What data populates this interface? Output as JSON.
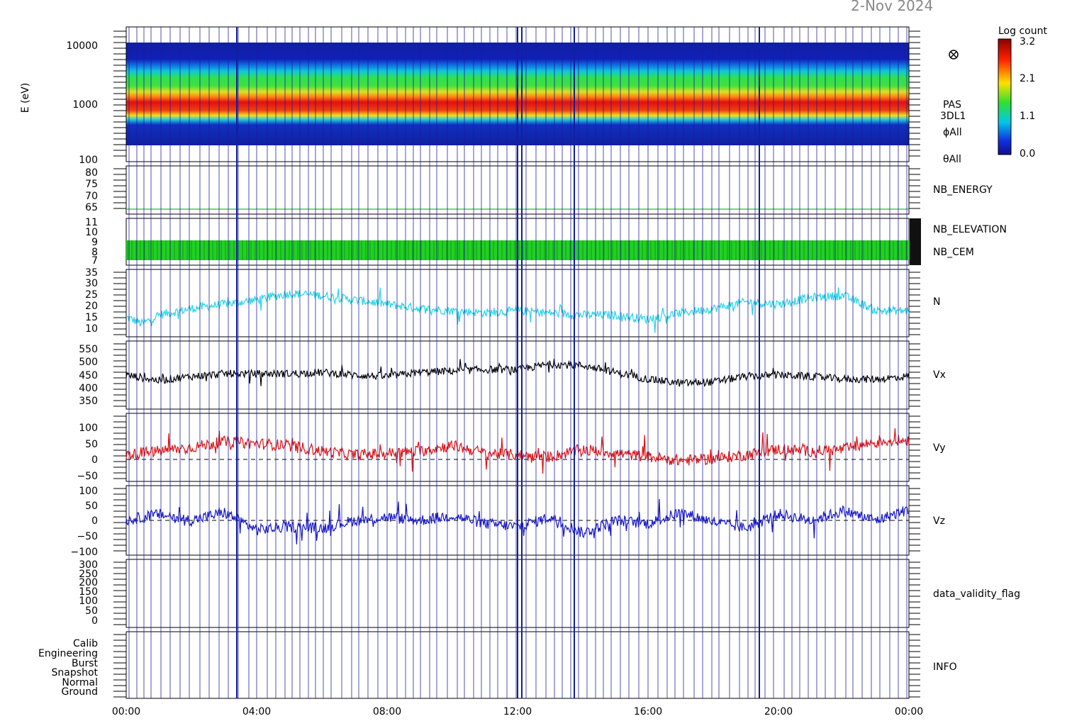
{
  "title": {
    "date_text": "2-Nov 2024"
  },
  "colorbar": {
    "label": "Log count",
    "ticks": [
      "3.2",
      "2.1",
      "1.1",
      "0.0"
    ]
  },
  "spectrogram": {
    "ylabel": "E (eV)",
    "labels": [
      "PAS",
      "3DL1",
      "ϕAll",
      "θAll"
    ]
  },
  "x_ticks": [
    "00:00",
    "04:00",
    "08:00",
    "12:00",
    "16:00",
    "20:00",
    "00:00"
  ],
  "colors": {
    "axis": "#000000",
    "event_lines": "#1a1aa0",
    "nb_energy": "#22c022",
    "nb_elevation": "#22d022",
    "nb_cem": "#2222c0",
    "N": "#22d4e8",
    "Vx": "#000000",
    "Vy": "#e01010",
    "Vz": "#1515c8"
  },
  "chart_data": [
    {
      "type": "heatmap",
      "name": "PAS 3DL1 energy spectrogram",
      "xlabel": "",
      "ylabel": "E (eV)",
      "yscale": "log",
      "ylim": [
        100,
        15000
      ],
      "y_ticks": [
        "10000",
        "1000",
        "100"
      ],
      "color_scale": {
        "label": "Log count",
        "min": 0.0,
        "max": 3.2
      },
      "peak_energy_eV": 1100
    },
    {
      "type": "line",
      "series": [
        {
          "name": "NB_ENERGY",
          "values": [
            64,
            64
          ]
        }
      ],
      "ylim": [
        60,
        82
      ],
      "y_ticks": [
        "80",
        "75",
        "70",
        "65"
      ]
    },
    {
      "type": "bar",
      "series": [
        {
          "name": "NB_ELEVATION",
          "values": [
            9
          ]
        },
        {
          "name": "NB_CEM",
          "values": [
            7
          ]
        }
      ],
      "ylim": [
        7,
        11
      ],
      "y_ticks": [
        "11",
        "10",
        "9",
        "8",
        "7"
      ]
    },
    {
      "type": "line",
      "series": [
        {
          "name": "N",
          "x_hours": [
            0,
            0.5,
            1,
            2,
            3,
            4,
            5,
            6,
            7,
            8,
            9,
            10,
            11,
            12,
            13,
            14,
            15,
            16,
            17,
            18,
            19,
            20,
            21,
            22,
            23,
            24
          ],
          "values": [
            14,
            11,
            15,
            18,
            20,
            22,
            25,
            24,
            22,
            20,
            18,
            17,
            16,
            17,
            16,
            15,
            15,
            13,
            16,
            18,
            21,
            20,
            23,
            24,
            17,
            17
          ]
        }
      ],
      "ylim": [
        5,
        36
      ],
      "y_ticks": [
        "35",
        "30",
        "25",
        "20",
        "15",
        "10"
      ]
    },
    {
      "type": "line",
      "series": [
        {
          "name": "Vx",
          "x_hours": [
            0,
            1,
            2,
            3,
            4,
            5,
            6,
            7,
            8,
            9,
            10,
            11,
            12,
            13,
            14,
            15,
            16,
            17,
            18,
            19,
            20,
            21,
            22,
            23,
            24
          ],
          "values": [
            445,
            425,
            440,
            450,
            450,
            450,
            455,
            445,
            440,
            455,
            460,
            465,
            465,
            485,
            480,
            455,
            430,
            415,
            420,
            440,
            445,
            440,
            430,
            430,
            440
          ]
        }
      ],
      "ylim": [
        320,
        570
      ],
      "y_ticks": [
        "550",
        "500",
        "450",
        "400",
        "350"
      ]
    },
    {
      "type": "line",
      "series": [
        {
          "name": "Vy",
          "x_hours": [
            0,
            1,
            2,
            3,
            4,
            5,
            6,
            7,
            8,
            9,
            10,
            11,
            12,
            13,
            14,
            15,
            16,
            17,
            18,
            19,
            20,
            21,
            22,
            23,
            24
          ],
          "values": [
            5,
            15,
            25,
            40,
            35,
            30,
            15,
            5,
            10,
            15,
            30,
            10,
            5,
            0,
            20,
            10,
            0,
            -10,
            -5,
            5,
            20,
            15,
            20,
            40,
            45
          ]
        }
      ],
      "ylim": [
        -65,
        115
      ],
      "y_ticks": [
        "100",
        "50",
        "0",
        "−50"
      ]
    },
    {
      "type": "line",
      "series": [
        {
          "name": "Vz",
          "x_hours": [
            0,
            1,
            2,
            3,
            4,
            5,
            6,
            7,
            8,
            9,
            10,
            11,
            12,
            13,
            14,
            15,
            16,
            17,
            18,
            19,
            20,
            21,
            22,
            23,
            24
          ],
          "values": [
            0,
            20,
            0,
            25,
            -30,
            -20,
            -25,
            0,
            10,
            0,
            15,
            -10,
            -20,
            10,
            -40,
            0,
            -10,
            25,
            -5,
            -25,
            20,
            0,
            30,
            0,
            35
          ]
        }
      ],
      "ylim": [
        -110,
        110
      ],
      "y_ticks": [
        "100",
        "50",
        "0",
        "−50",
        "−100"
      ]
    },
    {
      "type": "line",
      "series": [
        {
          "name": "data_validity_flag",
          "values": []
        }
      ],
      "ylim": [
        -20,
        310
      ],
      "y_ticks": [
        "300",
        "250",
        "200",
        "150",
        "100",
        "50",
        "0"
      ]
    },
    {
      "type": "table",
      "series": [
        {
          "name": "INFO",
          "values": []
        }
      ],
      "y_ticks": [
        "Calib",
        "Engineering",
        "Burst",
        "Snapshot",
        "Normal",
        "Ground"
      ]
    }
  ]
}
